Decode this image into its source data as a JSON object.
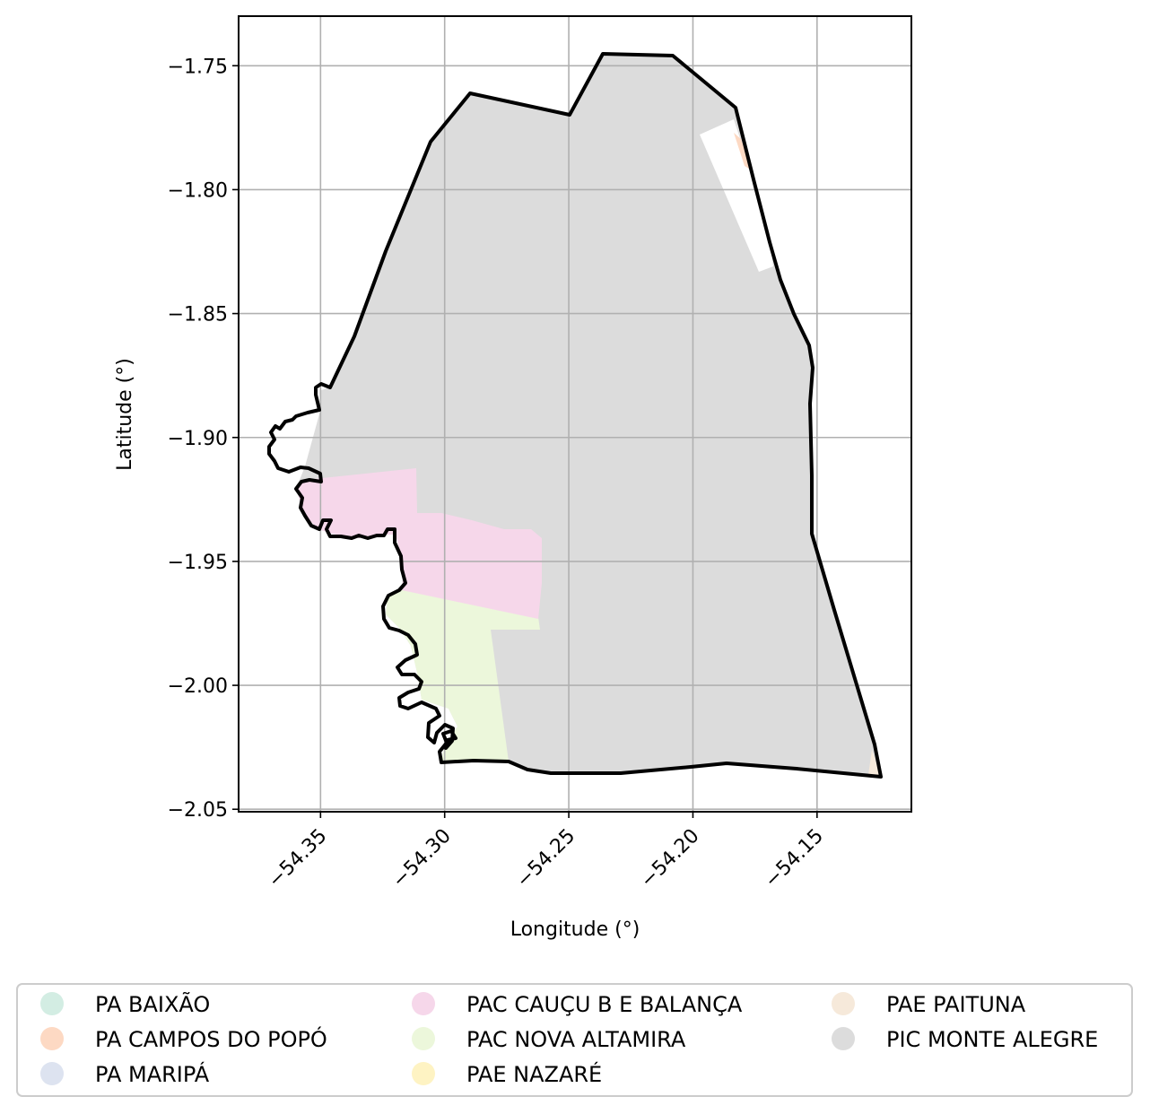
{
  "map": {
    "xlabel": "Longitude (°)",
    "ylabel": "Latitude (°)",
    "x_ticks": [
      "−54.35",
      "−54.30",
      "−54.25",
      "−54.20",
      "−54.15"
    ],
    "y_ticks": [
      "−1.75",
      "−1.80",
      "−1.85",
      "−1.90",
      "−1.95",
      "−2.00",
      "−2.05"
    ],
    "x_tick_values": [
      -54.35,
      -54.3,
      -54.25,
      -54.2,
      -54.15
    ],
    "y_tick_values": [
      -1.75,
      -1.8,
      -1.85,
      -1.9,
      -1.95,
      -2.0,
      -2.05
    ],
    "xlim": [
      -54.383,
      -54.112
    ],
    "ylim": [
      -2.051,
      -1.73
    ],
    "grid": true,
    "boundary_color": "#000000",
    "legend_placement": "bottom-center"
  },
  "chart_data": {
    "type": "map",
    "xlabel": "Longitude (°)",
    "ylabel": "Latitude (°)",
    "xlim": [
      -54.383,
      -54.112
    ],
    "ylim": [
      -2.051,
      -1.73
    ],
    "grid": true,
    "legend": [
      {
        "label": "PA BAIXÃO",
        "color": "#d3ede3"
      },
      {
        "label": "PA CAMPOS DO POPÓ",
        "color": "#fdd9c3"
      },
      {
        "label": "PA MARIPÁ",
        "color": "#dde3f0"
      },
      {
        "label": "PAC CAUÇU B E BALANÇA",
        "color": "#f6d7ea"
      },
      {
        "label": "PAC NOVA ALTAMIRA",
        "color": "#ecf7db"
      },
      {
        "label": "PAE NAZARÉ",
        "color": "#fef3c3"
      },
      {
        "label": "PAE PAITUNA",
        "color": "#f6e9da"
      },
      {
        "label": "PIC MONTE ALEGRE",
        "color": "#dcdcdc"
      }
    ]
  }
}
